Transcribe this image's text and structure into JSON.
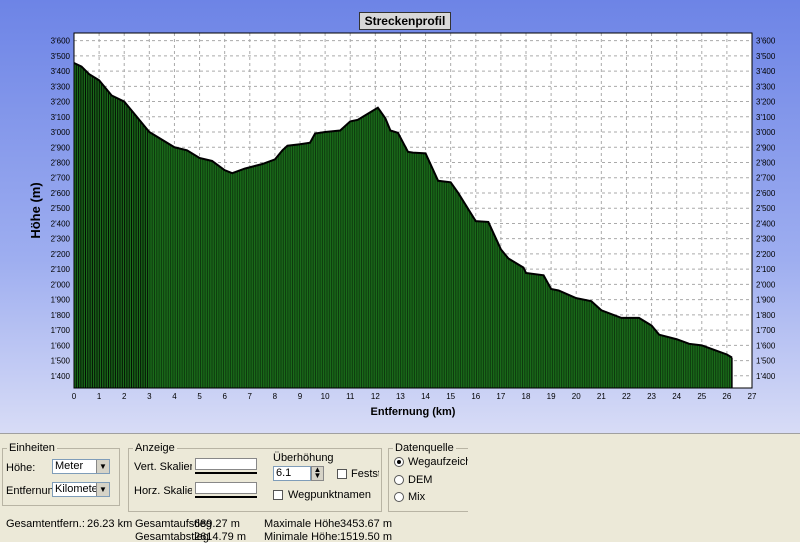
{
  "chart_data": {
    "type": "area",
    "title": "Streckenprofil",
    "xlabel": "Entfernung (km)",
    "ylabel": "Höhe (m)",
    "xlim": [
      0,
      27
    ],
    "ylim": [
      1320,
      3650
    ],
    "x_ticks": [
      "0",
      "1",
      "2",
      "3",
      "4",
      "5",
      "6",
      "7",
      "8",
      "9",
      "10",
      "11",
      "12",
      "13",
      "14",
      "15",
      "16",
      "17",
      "18",
      "19",
      "20",
      "21",
      "22",
      "23",
      "24",
      "25",
      "26",
      "27"
    ],
    "y_ticks": [
      "3'600",
      "3'500",
      "3'400",
      "3'300",
      "3'200",
      "3'100",
      "3'000",
      "2'900",
      "2'800",
      "2'700",
      "2'600",
      "2'500",
      "2'400",
      "2'300",
      "2'200",
      "2'100",
      "2'000",
      "1'900",
      "1'800",
      "1'700",
      "1'600",
      "1'500",
      "1'400"
    ],
    "y_tick_values": [
      3600,
      3500,
      3400,
      3300,
      3200,
      3100,
      3000,
      2900,
      2800,
      2700,
      2600,
      2500,
      2400,
      2300,
      2200,
      2100,
      2000,
      1900,
      1800,
      1700,
      1600,
      1500,
      1400
    ],
    "grid": true,
    "fill_color": "#1a6b1a",
    "line_color": "#000000",
    "x": [
      0,
      0.3,
      0.6,
      1,
      1.5,
      2,
      2.5,
      3,
      3.5,
      4,
      4.5,
      5,
      5.5,
      6,
      6.3,
      6.8,
      7.5,
      8,
      8.3,
      8.5,
      9,
      9.4,
      9.6,
      10,
      10.6,
      11,
      11.3,
      11.8,
      12.1,
      12.4,
      12.6,
      12.9,
      13.3,
      13.5,
      14,
      14.5,
      15,
      15.3,
      16,
      16.5,
      17,
      17.3,
      17.9,
      18,
      18.7,
      19,
      19.3,
      20,
      20.6,
      21,
      21.8,
      22.5,
      23,
      23.3,
      24,
      24.5,
      25,
      25.5,
      26,
      26.2
    ],
    "y": [
      3453,
      3430,
      3380,
      3340,
      3240,
      3200,
      3100,
      3000,
      2950,
      2900,
      2880,
      2830,
      2810,
      2750,
      2730,
      2760,
      2790,
      2820,
      2880,
      2910,
      2920,
      2930,
      2990,
      3000,
      3010,
      3070,
      3080,
      3130,
      3160,
      3090,
      3010,
      2995,
      2870,
      2865,
      2860,
      2680,
      2670,
      2600,
      2415,
      2410,
      2230,
      2170,
      2110,
      2075,
      2060,
      1970,
      1960,
      1910,
      1890,
      1830,
      1780,
      1780,
      1730,
      1670,
      1640,
      1610,
      1600,
      1570,
      1540,
      1520
    ]
  },
  "panel": {
    "einheiten": {
      "legend": "Einheiten",
      "hoehe_label": "Höhe:",
      "hoehe_value": "Meter",
      "entfernung_label": "Entfernung:",
      "entfernung_value": "Kilometer"
    },
    "anzeige": {
      "legend": "Anzeige",
      "vert_label": "Vert. Skalier.",
      "horz_label": "Horz. Skalier.",
      "ueberhoehung_label": "Überhöhung",
      "ueberhoehung_value": "6.1",
      "fest_label": "Festst",
      "wegpunkt_label": "Wegpunktnamen"
    },
    "datenquelle": {
      "legend": "Datenquelle",
      "opt1": "Wegaufzeichn",
      "opt2": "DEM",
      "opt3": "Mix"
    },
    "stats": {
      "gesamtentf_label": "Gesamtentfern.:",
      "gesamtentf_value": "26.23 km",
      "aufstieg_label": "Gesamtaufstieg",
      "aufstieg_value": "689.27 m",
      "abstieg_label": "Gesamtabstieg",
      "abstieg_value": "2614.79 m",
      "maxhoehe_label": "Maximale Höhe",
      "maxhoehe_value": "3453.67 m",
      "minhoehe_label": "Minimale Höhe:",
      "minhoehe_value": "1519.50 m"
    }
  }
}
